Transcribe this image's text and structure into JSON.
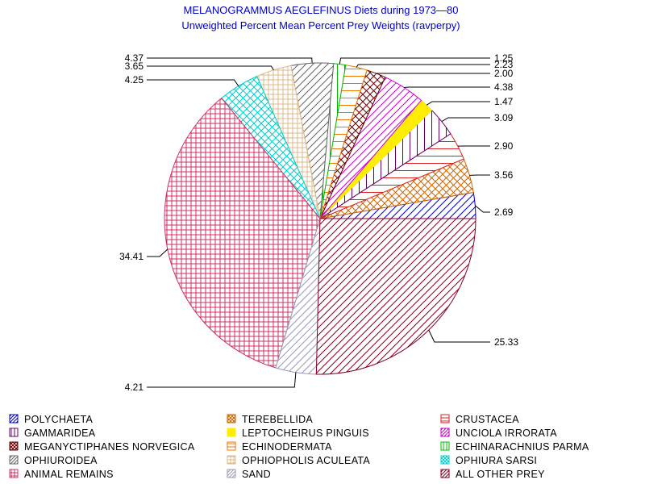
{
  "chart_data": {
    "type": "pie",
    "title": "MELANOGRAMMUS AEGLEFINUS Diets during 1973—80",
    "subtitle": "Unweighted Percent Mean Percent Prey  Weights (ravperpy)",
    "slices": [
      {
        "name": "POLYCHAETA",
        "value": 2.69,
        "label": "2.69",
        "color": "#0000cc",
        "pattern": "diag"
      },
      {
        "name": "TEREBELLIDA",
        "value": 3.56,
        "label": "3.56",
        "color": "#cc6600",
        "pattern": "cross"
      },
      {
        "name": "CRUSTACEA",
        "value": 2.9,
        "label": "2.90",
        "color": "#dd2222",
        "pattern": "horiz"
      },
      {
        "name": "GAMMARIDEA",
        "value": 3.09,
        "label": "3.09",
        "color": "#660066",
        "pattern": "vert"
      },
      {
        "name": "LEPTOCHEIRUS PINGUIS",
        "value": 1.47,
        "label": "1.47",
        "color": "#ffee00",
        "pattern": "solid"
      },
      {
        "name": "UNCIOLA IRRORATA",
        "value": 4.38,
        "label": "4.38",
        "color": "#cc00cc",
        "pattern": "diag"
      },
      {
        "name": "MEGANYCTIPHANES NORVEGICA",
        "value": 2.0,
        "label": "2.00",
        "color": "#660000",
        "pattern": "cross"
      },
      {
        "name": "ECHINODERMATA",
        "value": 2.23,
        "label": "2.23",
        "color": "#ee7700",
        "pattern": "horiz"
      },
      {
        "name": "ECHINARACHNIUS PARMA",
        "value": 1.25,
        "label": "1.25",
        "color": "#00bb00",
        "pattern": "vert"
      },
      {
        "name": "OPHIUROIDEA",
        "value": 4.37,
        "label": "4.37",
        "color": "#666666",
        "pattern": "diag"
      },
      {
        "name": "OPHIOPHOLIS ACULEATA",
        "value": 3.65,
        "label": "3.65",
        "color": "#ddbb88",
        "pattern": "grid"
      },
      {
        "name": "OPHIURA SARSI",
        "value": 4.25,
        "label": "4.25",
        "color": "#00cccc",
        "pattern": "cross"
      },
      {
        "name": "ANIMAL REMAINS",
        "value": 34.41,
        "label": "34.41",
        "color": "#cc3366",
        "pattern": "grid"
      },
      {
        "name": "SAND",
        "value": 4.21,
        "label": "4.21",
        "color": "#9999bb",
        "pattern": "diag"
      },
      {
        "name": "ALL OTHER PREY",
        "value": 25.33,
        "label": "25.33",
        "color": "#880022",
        "pattern": "diag"
      }
    ],
    "legend_position": "bottom",
    "legend_columns": 3
  }
}
